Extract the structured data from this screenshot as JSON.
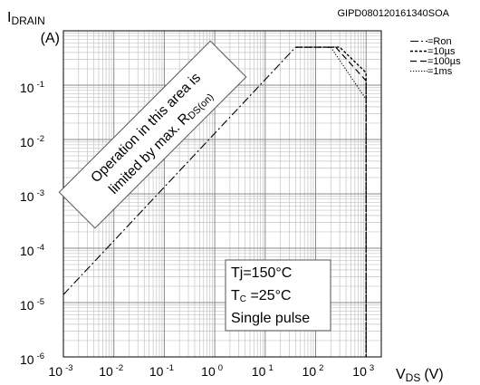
{
  "chart_data": {
    "type": "line",
    "code": "GIPD080120161340SOA",
    "y_axis": {
      "title": "I",
      "title_sub": "DRAIN",
      "unit": "(A)",
      "scale": "log",
      "range": [
        1e-06,
        1
      ]
    },
    "x_axis": {
      "title": "V",
      "title_sub": "DS",
      "unit": "(V)",
      "scale": "log",
      "range": [
        0.001,
        2000
      ]
    },
    "x_ticks": [
      {
        "base": "10",
        "exp": "-3",
        "value": 0.001
      },
      {
        "base": "10",
        "exp": "-2",
        "value": 0.01
      },
      {
        "base": "10",
        "exp": "-1",
        "value": 0.1
      },
      {
        "base": "10",
        "exp": "0",
        "value": 1
      },
      {
        "base": "10",
        "exp": "1",
        "value": 10
      },
      {
        "base": "10",
        "exp": "2",
        "value": 100
      },
      {
        "base": "10",
        "exp": "3",
        "value": 1000
      }
    ],
    "y_ticks": [
      {
        "base": "10",
        "exp": "-1",
        "value": 0.1
      },
      {
        "base": "10",
        "exp": "-2",
        "value": 0.01
      },
      {
        "base": "10",
        "exp": "-3",
        "value": 0.001
      },
      {
        "base": "10",
        "exp": "-4",
        "value": 0.0001
      },
      {
        "base": "10",
        "exp": "-5",
        "value": 1e-05
      },
      {
        "base": "10",
        "exp": "-6",
        "value": 1e-06
      }
    ],
    "grid": true,
    "legend_position": "right",
    "series": [
      {
        "name": "=Ron",
        "style": "dash-dot",
        "points": [
          [
            0.001,
            1.4e-05
          ],
          [
            40,
            0.5
          ]
        ]
      },
      {
        "name": "=10µs",
        "style": "dashed",
        "points": [
          [
            40,
            0.5
          ],
          [
            300,
            0.5
          ],
          [
            1000,
            0.17
          ],
          [
            1000,
            1e-06
          ]
        ]
      },
      {
        "name": "=100µs",
        "style": "long-dash",
        "points": [
          [
            40,
            0.5
          ],
          [
            250,
            0.5
          ],
          [
            1000,
            0.12
          ],
          [
            1000,
            1e-06
          ]
        ]
      },
      {
        "name": "=1ms",
        "style": "dotted",
        "points": [
          [
            40,
            0.5
          ],
          [
            200,
            0.5
          ],
          [
            1000,
            0.055
          ],
          [
            1000,
            1e-06
          ]
        ]
      }
    ],
    "annotations": {
      "region_line1": "Operation in this area is",
      "region_line2_prefix": "limited by max. R",
      "region_line2_sub": "DS(on)",
      "conditions": {
        "tj": "Tj=150°C",
        "tc_main": "T",
        "tc_sub": "C",
        "tc_rest": " =25°C",
        "pulse": "Single pulse"
      }
    }
  }
}
